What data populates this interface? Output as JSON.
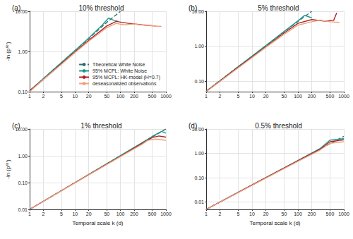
{
  "chart_data": [
    {
      "type": "line",
      "panel": "(a).",
      "title": "10% threshold",
      "ylabel": "-ln (p⁽ᵏ⁾)",
      "log": true,
      "grid": true,
      "legend": "lower right",
      "xlim": [
        1,
        1000
      ],
      "xticks": [
        1,
        2,
        5,
        10,
        20,
        50,
        100,
        200,
        500,
        1000
      ],
      "ylim": [
        0.1,
        10
      ],
      "yticks": [
        {
          "value": 0.1,
          "label": "0.10"
        },
        {
          "value": 1,
          "label": "1.00"
        },
        {
          "value": 10,
          "label": "10.00"
        }
      ],
      "series": [
        {
          "name": "Theoretical White Noise",
          "color": "#2b6f6b",
          "line_style": "dashed",
          "x": [
            1,
            2,
            5,
            10,
            20,
            50,
            100
          ],
          "values": [
            0.105,
            0.21,
            0.53,
            1.05,
            2.1,
            5.3,
            10
          ]
        },
        {
          "name": "95% MCPL: White Noise",
          "color": "#1a9a8a",
          "line_style": "solid",
          "x": [
            1,
            2,
            5,
            10,
            20,
            40,
            55,
            70,
            90
          ],
          "values": [
            0.105,
            0.21,
            0.53,
            1.06,
            2.15,
            4.6,
            6.8,
            6.0,
            5.6
          ]
        },
        {
          "name": "95% MCPL: HK-model (H=0.7)",
          "color": "#b22222",
          "line_style": "solid",
          "x": [
            1,
            2,
            5,
            10,
            20,
            50,
            80,
            150,
            300,
            600
          ],
          "values": [
            0.105,
            0.2,
            0.5,
            0.98,
            1.9,
            4.3,
            5.6,
            5.0,
            4.6,
            4.3
          ]
        },
        {
          "name": "deseasonalized observations",
          "color": "#f0a080",
          "line_style": "solid",
          "x": [
            1,
            2,
            5,
            10,
            20,
            50,
            80,
            120,
            200,
            400,
            800
          ],
          "values": [
            0.1,
            0.2,
            0.48,
            0.94,
            1.8,
            3.9,
            5.0,
            4.6,
            4.8,
            4.4,
            4.2
          ]
        }
      ]
    },
    {
      "type": "line",
      "panel": "(b).",
      "title": "5% threshold",
      "log": true,
      "grid": true,
      "xlim": [
        1,
        1000
      ],
      "xticks": [
        1,
        2,
        5,
        10,
        20,
        50,
        100,
        200,
        500,
        1000
      ],
      "ylim": [
        0.05,
        10
      ],
      "yticks": [
        {
          "value": 0.1,
          "label": "0.10"
        },
        {
          "value": 1,
          "label": "1.00"
        },
        {
          "value": 10,
          "label": "10.00"
        }
      ],
      "series": [
        {
          "name": "Theoretical White Noise",
          "color": "#2b6f6b",
          "line_style": "dashed",
          "x": [
            1,
            2,
            5,
            10,
            20,
            50,
            100,
            200
          ],
          "values": [
            0.051,
            0.103,
            0.26,
            0.51,
            1.03,
            2.6,
            5.1,
            10
          ]
        },
        {
          "name": "95% MCPL: White Noise",
          "color": "#1a9a8a",
          "line_style": "solid",
          "x": [
            1,
            2,
            5,
            10,
            20,
            50,
            100,
            140,
            200
          ],
          "values": [
            0.051,
            0.103,
            0.26,
            0.52,
            1.05,
            2.65,
            5.3,
            7.6,
            6.5
          ]
        },
        {
          "name": "95% MCPL: HK-model (H=0.7)",
          "color": "#b22222",
          "line_style": "solid",
          "x": [
            1,
            2,
            5,
            10,
            20,
            50,
            100,
            200,
            400,
            600,
            700
          ],
          "values": [
            0.051,
            0.1,
            0.25,
            0.49,
            0.97,
            2.4,
            4.5,
            5.8,
            5.2,
            5.5,
            9.0
          ]
        },
        {
          "name": "deseasonalized observations",
          "color": "#f0a080",
          "line_style": "solid",
          "x": [
            1,
            2,
            5,
            10,
            20,
            50,
            100,
            200,
            300,
            500,
            800
          ],
          "values": [
            0.05,
            0.098,
            0.24,
            0.47,
            0.93,
            2.2,
            4.0,
            5.0,
            5.6,
            5.0,
            4.8
          ]
        }
      ]
    },
    {
      "type": "line",
      "panel": "(c).",
      "title": "1% threshold",
      "xlabel": "Temporal scale k (d)",
      "ylabel": "-ln (p⁽ᵏ⁾)",
      "log": true,
      "grid": true,
      "xlim": [
        1,
        1000
      ],
      "xticks": [
        1,
        2,
        5,
        10,
        20,
        50,
        100,
        200,
        500,
        1000
      ],
      "ylim": [
        0.01,
        10
      ],
      "yticks": [
        0.01,
        {
          "value": 0.1,
          "label": "0.10"
        },
        {
          "value": 1,
          "label": "1.00"
        },
        {
          "value": 10,
          "label": "10.00"
        }
      ],
      "series": [
        {
          "name": "Theoretical White Noise",
          "color": "#2b6f6b",
          "line_style": "dashed",
          "x": [
            1,
            2,
            5,
            10,
            20,
            50,
            100,
            200,
            500,
            1000
          ],
          "values": [
            0.01,
            0.02,
            0.05,
            0.1,
            0.2,
            0.5,
            1.0,
            2.0,
            5.0,
            10
          ]
        },
        {
          "name": "95% MCPL: White Noise",
          "color": "#1a9a8a",
          "line_style": "solid",
          "x": [
            1,
            10,
            100,
            300,
            500,
            800,
            1000
          ],
          "values": [
            0.01,
            0.1,
            1.02,
            3.1,
            5.3,
            8.2,
            7.0
          ]
        },
        {
          "name": "95% MCPL: HK-model (H=0.7)",
          "color": "#b22222",
          "line_style": "solid",
          "x": [
            1,
            10,
            100,
            300,
            500,
            700,
            1000
          ],
          "values": [
            0.01,
            0.1,
            0.97,
            2.9,
            4.8,
            5.5,
            5.0
          ]
        },
        {
          "name": "deseasonalized observations",
          "color": "#f0a080",
          "line_style": "solid",
          "x": [
            1,
            10,
            100,
            300,
            400,
            600,
            1000
          ],
          "values": [
            0.01,
            0.098,
            0.93,
            2.7,
            3.8,
            4.2,
            3.8
          ]
        }
      ]
    },
    {
      "type": "line",
      "panel": "(d).",
      "title": "0.5% threshold",
      "xlabel": "Temporal scale k (d)",
      "log": true,
      "grid": true,
      "xlim": [
        1,
        1000
      ],
      "xticks": [
        1,
        2,
        5,
        10,
        20,
        50,
        100,
        200,
        500,
        1000
      ],
      "ylim": [
        0.005,
        10
      ],
      "yticks": [
        0.01,
        {
          "value": 0.1,
          "label": "0.10"
        },
        {
          "value": 1,
          "label": "1.00"
        },
        {
          "value": 10,
          "label": "10.00"
        }
      ],
      "series": [
        {
          "name": "Theoretical White Noise",
          "color": "#2b6f6b",
          "line_style": "dashed",
          "x": [
            1,
            10,
            100,
            1000
          ],
          "values": [
            0.005,
            0.05,
            0.5,
            5.0
          ]
        },
        {
          "name": "95% MCPL: White Noise",
          "color": "#1a9a8a",
          "line_style": "solid",
          "x": [
            1,
            10,
            100,
            300,
            500,
            1000
          ],
          "values": [
            0.005,
            0.05,
            0.51,
            1.55,
            3.5,
            4.0
          ]
        },
        {
          "name": "95% MCPL: HK-model (H=0.7)",
          "color": "#b22222",
          "line_style": "solid",
          "x": [
            1,
            10,
            100,
            300,
            500,
            1000
          ],
          "values": [
            0.005,
            0.05,
            0.49,
            1.45,
            3.0,
            3.6
          ]
        },
        {
          "name": "deseasonalized observations",
          "color": "#f0a080",
          "line_style": "solid",
          "x": [
            1,
            10,
            100,
            300,
            500,
            1000
          ],
          "values": [
            0.005,
            0.049,
            0.47,
            1.35,
            2.6,
            3.0
          ]
        }
      ]
    }
  ]
}
